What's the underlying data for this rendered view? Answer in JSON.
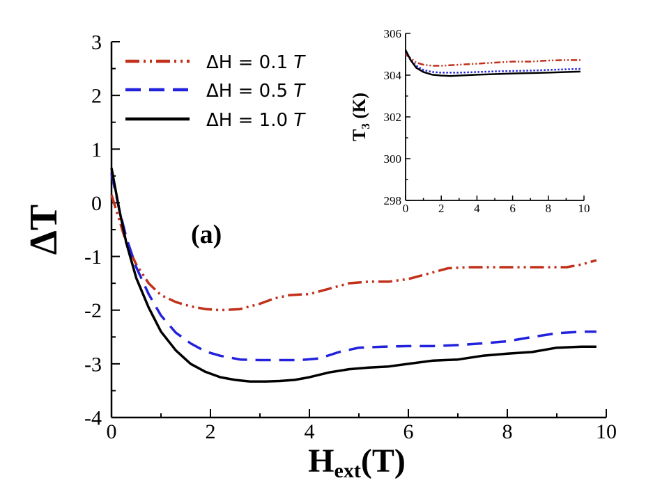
{
  "chart_data": [
    {
      "id": "main",
      "type": "line",
      "title": "",
      "panel_label": "(a)",
      "xlabel": {
        "main": "H",
        "sub": "ext",
        "suffix": "(T)"
      },
      "ylabel": "ΔT",
      "xlim": [
        0,
        10
      ],
      "ylim": [
        -4,
        3
      ],
      "xticks": [
        0,
        2,
        4,
        6,
        8,
        10
      ],
      "yticks": [
        -4,
        -3,
        -2,
        -1,
        0,
        1,
        2,
        3
      ],
      "grid": false,
      "legend_position": "top-left",
      "series": [
        {
          "name": "ΔH = 0.1 T",
          "legend_prefix": "ΔH = 0.1 ",
          "legend_unit": "T",
          "color": "#c0301a",
          "style": "dash-dot-dot",
          "x": [
            0,
            0.15,
            0.3,
            0.5,
            0.75,
            1.0,
            1.3,
            1.6,
            1.9,
            2.2,
            2.6,
            3.0,
            3.3,
            3.6,
            4.0,
            4.4,
            4.8,
            5.2,
            5.6,
            6.0,
            6.4,
            6.8,
            7.2,
            7.6,
            8.0,
            8.4,
            8.8,
            9.2,
            9.5,
            9.8
          ],
          "y": [
            0.15,
            -0.3,
            -0.75,
            -1.15,
            -1.5,
            -1.72,
            -1.85,
            -1.93,
            -1.98,
            -2.0,
            -1.98,
            -1.88,
            -1.78,
            -1.72,
            -1.7,
            -1.6,
            -1.5,
            -1.47,
            -1.47,
            -1.42,
            -1.32,
            -1.22,
            -1.2,
            -1.2,
            -1.2,
            -1.2,
            -1.2,
            -1.2,
            -1.15,
            -1.07
          ]
        },
        {
          "name": "ΔH = 0.5 T",
          "legend_prefix": "ΔH = 0.5 ",
          "legend_unit": "T",
          "color": "#2222dd",
          "style": "dashed",
          "x": [
            0,
            0.15,
            0.3,
            0.5,
            0.75,
            1.0,
            1.3,
            1.6,
            1.9,
            2.2,
            2.6,
            3.0,
            3.4,
            3.8,
            4.2,
            4.6,
            5.0,
            5.5,
            6.0,
            6.5,
            7.0,
            7.5,
            8.0,
            8.5,
            9.0,
            9.5,
            9.8
          ],
          "y": [
            0.55,
            -0.1,
            -0.65,
            -1.2,
            -1.7,
            -2.1,
            -2.42,
            -2.62,
            -2.77,
            -2.85,
            -2.92,
            -2.93,
            -2.93,
            -2.93,
            -2.9,
            -2.78,
            -2.7,
            -2.68,
            -2.67,
            -2.67,
            -2.65,
            -2.62,
            -2.58,
            -2.5,
            -2.43,
            -2.4,
            -2.4
          ]
        },
        {
          "name": "ΔH = 1.0 T",
          "legend_prefix": "ΔH = 1.0 ",
          "legend_unit": "T",
          "color": "#000000",
          "style": "solid",
          "x": [
            0,
            0.15,
            0.3,
            0.5,
            0.75,
            1.0,
            1.3,
            1.6,
            1.9,
            2.2,
            2.5,
            2.8,
            3.1,
            3.4,
            3.7,
            4.0,
            4.4,
            4.8,
            5.2,
            5.6,
            6.0,
            6.5,
            7.0,
            7.5,
            8.0,
            8.5,
            9.0,
            9.5,
            9.8
          ],
          "y": [
            0.65,
            -0.1,
            -0.75,
            -1.4,
            -1.95,
            -2.4,
            -2.75,
            -3.0,
            -3.15,
            -3.25,
            -3.3,
            -3.33,
            -3.33,
            -3.32,
            -3.3,
            -3.25,
            -3.16,
            -3.1,
            -3.07,
            -3.05,
            -3.0,
            -2.94,
            -2.92,
            -2.85,
            -2.81,
            -2.78,
            -2.7,
            -2.68,
            -2.68
          ]
        }
      ]
    },
    {
      "id": "inset",
      "type": "line",
      "title": "",
      "xlabel": "",
      "ylabel": {
        "main": "T",
        "sub": "3",
        "suffix": " (K)"
      },
      "xlim": [
        0,
        10
      ],
      "ylim": [
        298,
        306
      ],
      "xticks": [
        0,
        2,
        4,
        6,
        8,
        10
      ],
      "yticks": [
        298,
        300,
        302,
        304,
        306
      ],
      "grid": false,
      "series": [
        {
          "name": "ΔH = 0.1 T",
          "color": "#c0301a",
          "style": "dash-dot-dot",
          "x": [
            0,
            0.3,
            0.6,
            1.0,
            1.5,
            2.0,
            3.0,
            4.0,
            5.0,
            6.0,
            7.0,
            8.0,
            9.0,
            9.8
          ],
          "y": [
            305.0,
            304.8,
            304.6,
            304.5,
            304.45,
            304.45,
            304.5,
            304.55,
            304.6,
            304.65,
            304.65,
            304.7,
            304.72,
            304.72
          ]
        },
        {
          "name": "ΔH = 0.5 T",
          "color": "#2222dd",
          "style": "dotted",
          "x": [
            0,
            0.3,
            0.6,
            1.0,
            1.5,
            2.0,
            3.0,
            4.0,
            5.0,
            6.0,
            7.0,
            8.0,
            9.0,
            9.8
          ],
          "y": [
            305.1,
            304.7,
            304.45,
            304.25,
            304.15,
            304.12,
            304.12,
            304.15,
            304.18,
            304.2,
            304.22,
            304.25,
            304.28,
            304.3
          ]
        },
        {
          "name": "ΔH = 1.0 T",
          "color": "#000000",
          "style": "solid",
          "x": [
            0,
            0.3,
            0.6,
            1.0,
            1.5,
            2.0,
            2.5,
            3.0,
            4.0,
            5.0,
            6.0,
            7.0,
            8.0,
            9.0,
            9.8
          ],
          "y": [
            305.2,
            304.7,
            304.35,
            304.15,
            304.02,
            303.98,
            303.96,
            303.98,
            304.02,
            304.05,
            304.08,
            304.1,
            304.12,
            304.15,
            304.17
          ]
        }
      ]
    }
  ]
}
